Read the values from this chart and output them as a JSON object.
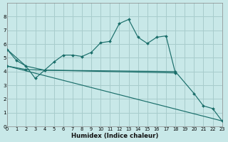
{
  "xlabel": "Humidex (Indice chaleur)",
  "bg_color": "#c8e8e8",
  "grid_color": "#a8cccc",
  "line_color": "#1a6e6a",
  "xlim": [
    0,
    23
  ],
  "ylim": [
    0,
    9
  ],
  "xticks": [
    0,
    1,
    2,
    3,
    4,
    5,
    6,
    7,
    8,
    9,
    10,
    11,
    12,
    13,
    14,
    15,
    16,
    17,
    18,
    19,
    20,
    21,
    22,
    23
  ],
  "yticks": [
    0,
    1,
    2,
    3,
    4,
    5,
    6,
    7,
    8
  ],
  "line1_x": [
    0,
    1,
    2,
    3,
    4,
    5,
    6,
    7,
    8,
    9,
    10,
    11,
    12,
    13,
    14,
    15,
    16,
    17,
    18
  ],
  "line1_y": [
    5.6,
    4.8,
    4.4,
    3.5,
    4.1,
    4.7,
    5.2,
    5.2,
    5.1,
    5.4,
    6.1,
    6.2,
    7.5,
    7.8,
    6.5,
    6.05,
    6.5,
    6.6,
    3.9
  ],
  "line2_x": [
    0,
    2,
    4,
    18
  ],
  "line2_y": [
    5.6,
    4.4,
    4.1,
    3.9
  ],
  "line3_x": [
    0,
    2,
    4,
    18,
    20,
    21,
    22,
    23
  ],
  "line3_y": [
    4.4,
    4.15,
    4.1,
    4.0,
    2.4,
    1.5,
    1.3,
    0.4
  ],
  "line4_x": [
    0,
    23
  ],
  "line4_y": [
    4.4,
    0.4
  ]
}
